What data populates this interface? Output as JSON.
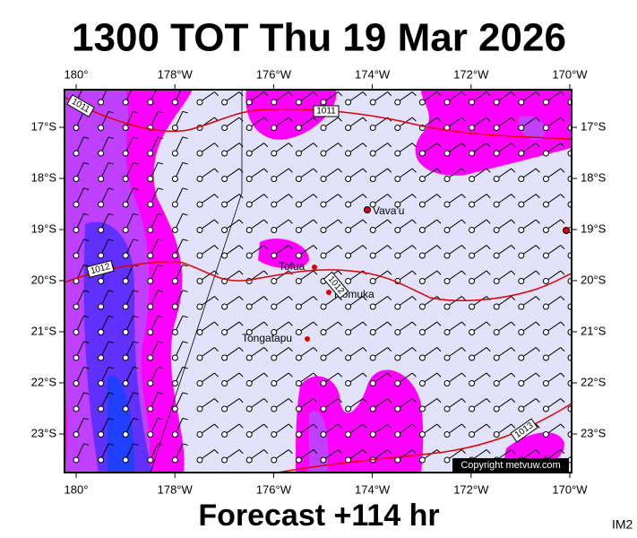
{
  "title": "1300 TOT Thu 19 Mar 2026",
  "map": {
    "lon_labels": [
      "180°",
      "178°W",
      "176°W",
      "174°W",
      "172°W",
      "170°W"
    ],
    "lat_labels": [
      "17°S",
      "18°S",
      "19°S",
      "20°S",
      "21°S",
      "22°S",
      "23°S"
    ],
    "places": [
      "Vava'u",
      "Tofua",
      "Nomuka",
      "Tongatapu"
    ],
    "isobar_labels": [
      1011,
      1011,
      1012,
      1012,
      1013
    ],
    "copyright": "Copyright metvuw.com"
  },
  "footer": {
    "forecast": "Forecast +114 hr",
    "image_id": "IM2"
  }
}
